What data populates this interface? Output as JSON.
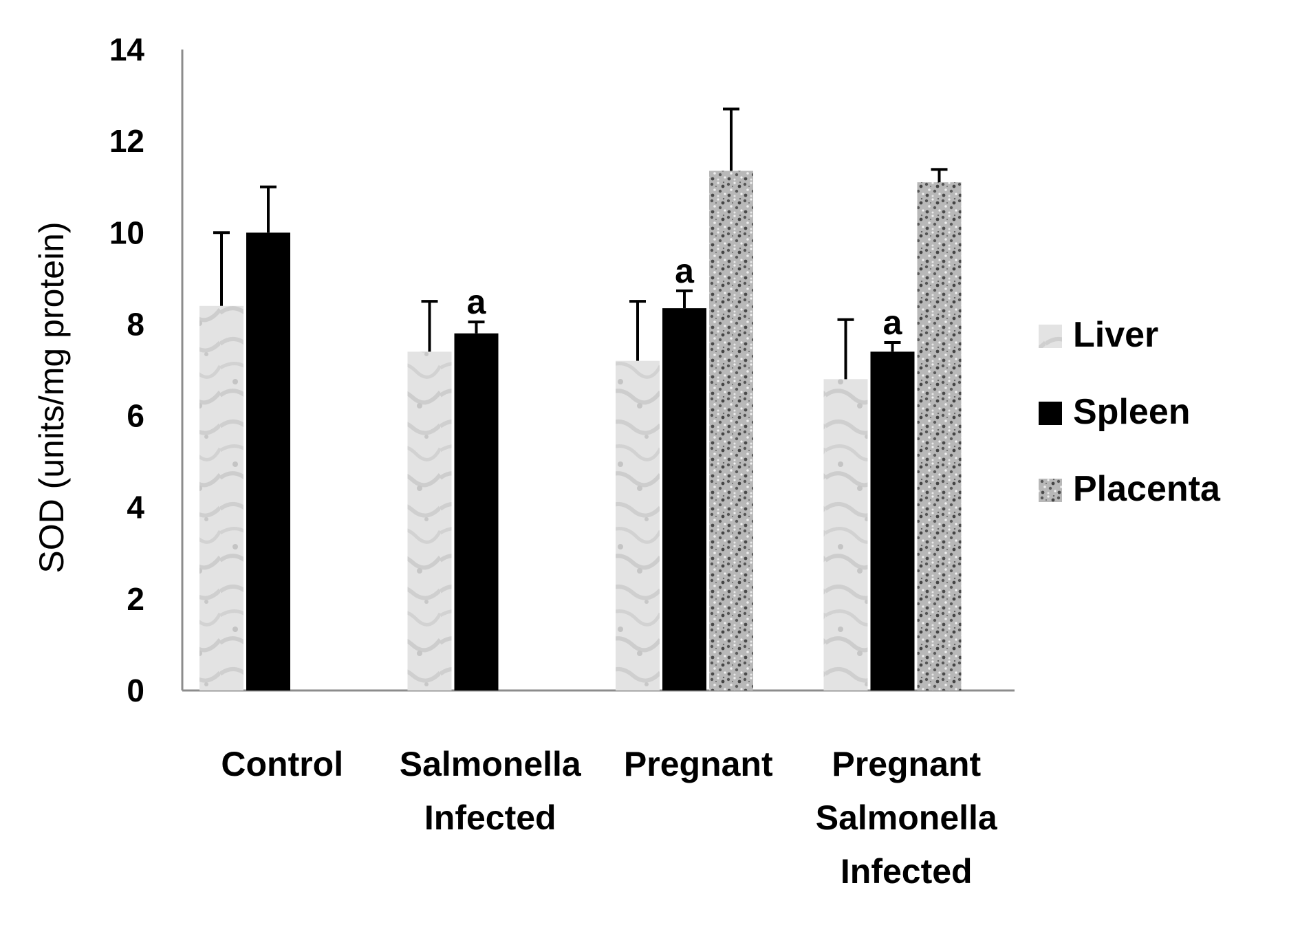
{
  "chart_data": {
    "type": "bar",
    "title": "",
    "xlabel": "",
    "ylabel": "SOD (units/mg protein)",
    "ylim": [
      0,
      14
    ],
    "yticks": [
      0,
      2,
      4,
      6,
      8,
      10,
      12,
      14
    ],
    "grid": false,
    "legend_position": "right",
    "categories": [
      [
        "Control"
      ],
      [
        "Salmonella",
        "Infected"
      ],
      [
        "Pregnant"
      ],
      [
        "Pregnant",
        "Salmonella",
        "Infected"
      ]
    ],
    "series": [
      {
        "name": "Liver",
        "pattern": "light-gray-texture",
        "color": "#d9d9d9",
        "values": [
          8.4,
          7.4,
          7.2,
          6.8
        ],
        "errors": [
          1.6,
          1.1,
          1.3,
          1.3
        ],
        "annotations": [
          "",
          "",
          "",
          ""
        ]
      },
      {
        "name": "Spleen",
        "pattern": "solid-black",
        "color": "#000000",
        "values": [
          10.0,
          7.8,
          8.35,
          7.4
        ],
        "errors": [
          1.0,
          0.25,
          0.38,
          0.2
        ],
        "annotations": [
          "",
          "a",
          "a",
          "a"
        ]
      },
      {
        "name": "Placenta",
        "pattern": "dark-speckle-texture",
        "color": "#8a8a8a",
        "values": [
          null,
          null,
          11.35,
          11.1
        ],
        "errors": [
          null,
          null,
          1.35,
          0.28
        ],
        "annotations": [
          "",
          "",
          "",
          ""
        ]
      }
    ]
  }
}
